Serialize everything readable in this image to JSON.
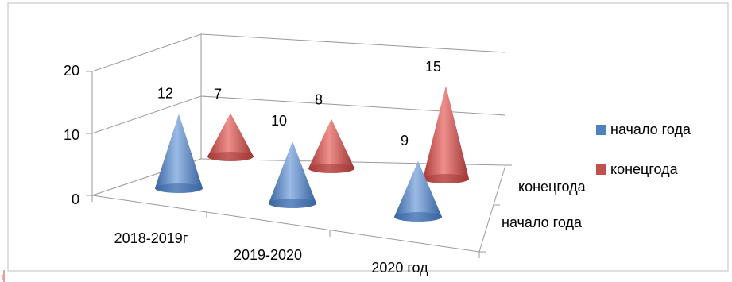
{
  "chart_data": {
    "type": "bar",
    "style": "3d-cone",
    "categories": [
      "2018-2019г",
      "2019-2020",
      "2020 год"
    ],
    "series": [
      {
        "name": "начало года",
        "values": [
          12,
          10,
          9
        ],
        "color": "#4f81bd"
      },
      {
        "name": "конецгода",
        "values": [
          7,
          8,
          15
        ],
        "color": "#c0504d"
      }
    ],
    "depth_labels": [
      "конецгода",
      "начало года"
    ],
    "yticks": [
      0,
      10,
      20
    ],
    "ylim": [
      0,
      20
    ],
    "grid": true,
    "legend_position": "right"
  },
  "page_marker": "1"
}
